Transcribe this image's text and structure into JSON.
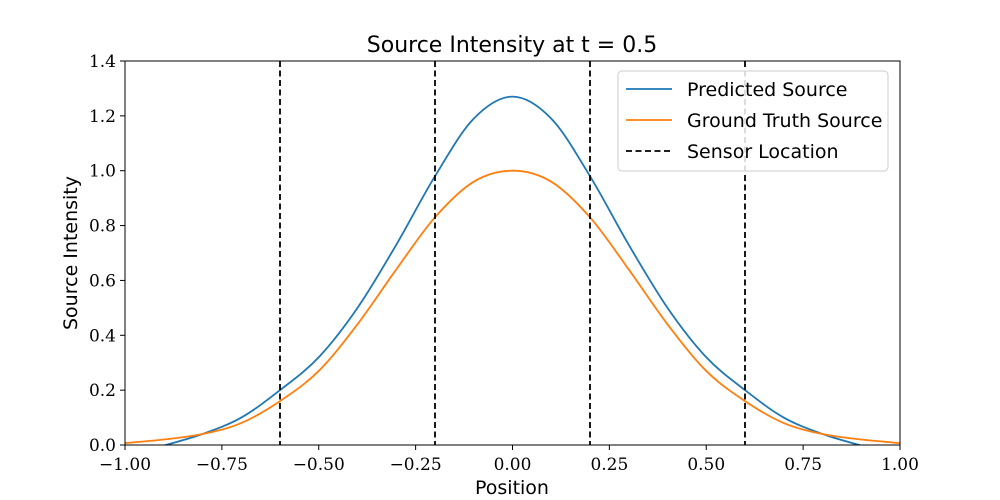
{
  "chart_data": {
    "type": "line",
    "title": "Source Intensity at t = 0.5",
    "xlabel": "Position",
    "ylabel": "Source Intensity",
    "xlim": [
      -1.0,
      1.0
    ],
    "ylim": [
      0.0,
      1.4
    ],
    "xticks": [
      -1.0,
      -0.75,
      -0.5,
      -0.25,
      0.0,
      0.25,
      0.5,
      0.75,
      1.0
    ],
    "xtick_labels": [
      "−1.00",
      "−0.75",
      "−0.50",
      "−0.25",
      "0.00",
      "0.25",
      "0.50",
      "0.75",
      "1.00"
    ],
    "yticks": [
      0.0,
      0.2,
      0.4,
      0.6,
      0.8,
      1.0,
      1.2,
      1.4
    ],
    "ytick_labels": [
      "0.0",
      "0.2",
      "0.4",
      "0.6",
      "0.8",
      "1.0",
      "1.2",
      "1.4"
    ],
    "grid": false,
    "legend_position": "top-right",
    "x": [
      -1.0,
      -0.9,
      -0.8,
      -0.7,
      -0.6,
      -0.5,
      -0.4,
      -0.3,
      -0.2,
      -0.1,
      0.0,
      0.1,
      0.2,
      0.3,
      0.4,
      0.5,
      0.6,
      0.7,
      0.8,
      0.9,
      1.0
    ],
    "series": [
      {
        "name": "Predicted Source",
        "color": "#1f77b4",
        "dash": "solid",
        "values": [
          -0.04,
          -0.002,
          0.04,
          0.1,
          0.2,
          0.32,
          0.5,
          0.73,
          0.98,
          1.19,
          1.27,
          1.19,
          0.98,
          0.73,
          0.5,
          0.32,
          0.2,
          0.1,
          0.04,
          -0.002,
          -0.04
        ]
      },
      {
        "name": "Ground Truth Source",
        "color": "#ff7f0e",
        "dash": "solid",
        "values": [
          0.007,
          0.02,
          0.04,
          0.08,
          0.16,
          0.27,
          0.44,
          0.64,
          0.83,
          0.96,
          1.0,
          0.96,
          0.83,
          0.64,
          0.44,
          0.27,
          0.16,
          0.08,
          0.04,
          0.02,
          0.007
        ]
      }
    ],
    "vlines": {
      "name": "Sensor Location",
      "color": "#000000",
      "dash": "dashed",
      "x": [
        -0.6,
        -0.2,
        0.2,
        0.6
      ]
    }
  }
}
